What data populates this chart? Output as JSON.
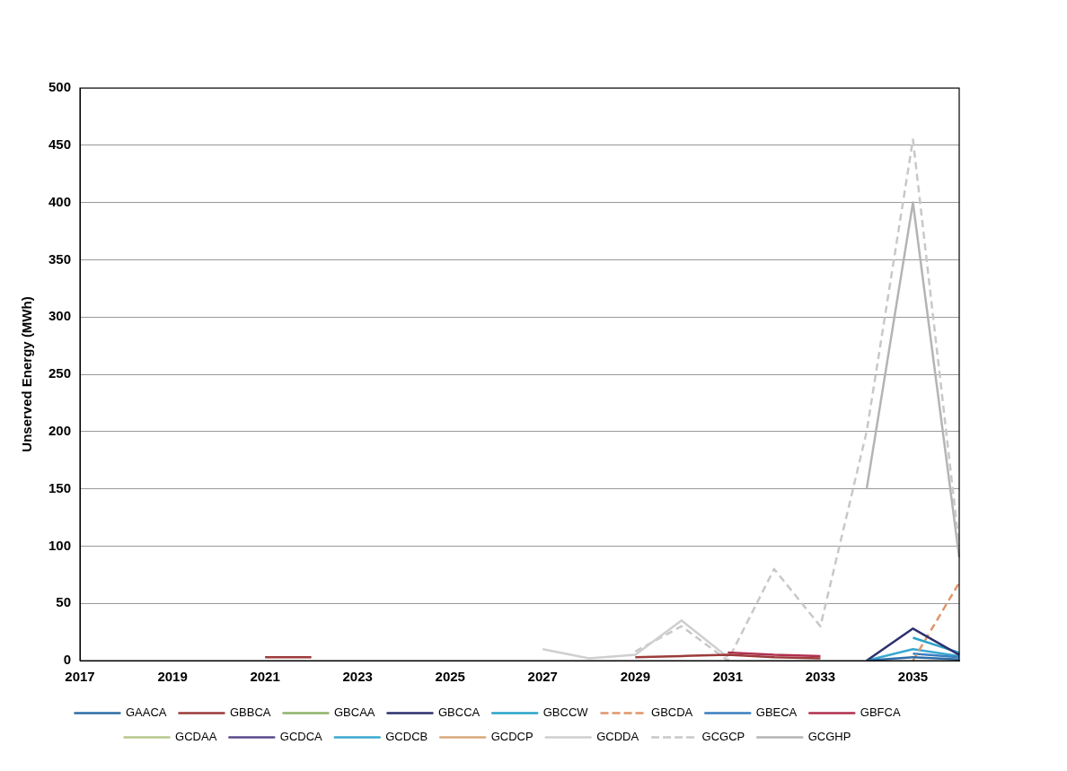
{
  "chart_data": {
    "type": "line",
    "ylabel": "Unserved Energy (MWh)",
    "categories": [
      "2017",
      null,
      "2019",
      null,
      "2021",
      null,
      "2023",
      null,
      "2025",
      null,
      "2027",
      null,
      "2029",
      null,
      "2031",
      null,
      "2033",
      null,
      "2035",
      null
    ],
    "ylim": [
      0,
      500
    ],
    "yticks": [
      0,
      50,
      100,
      150,
      200,
      250,
      300,
      350,
      400,
      450,
      500
    ],
    "grid": "y",
    "legend": "bottom",
    "marker": "none",
    "line_style": "solid",
    "series": [
      {
        "name": "GAACA",
        "color": "#2e6ea6",
        "values": [
          null,
          null,
          null,
          null,
          null,
          null,
          null,
          null,
          null,
          null,
          null,
          null,
          null,
          null,
          null,
          null,
          null,
          0,
          3,
          1
        ]
      },
      {
        "name": "GBBCA",
        "color": "#9c3b3b",
        "values": [
          null,
          null,
          null,
          null,
          3,
          3,
          null,
          null,
          null,
          null,
          null,
          null,
          3,
          4,
          5,
          3,
          2,
          null,
          null,
          null
        ]
      },
      {
        "name": "GBCAA",
        "color": "#8db36a",
        "values": [
          null,
          null,
          null,
          null,
          null,
          null,
          null,
          null,
          null,
          null,
          null,
          null,
          null,
          null,
          null,
          null,
          null,
          null,
          null,
          null
        ]
      },
      {
        "name": "GBCCA",
        "color": "#2d2f6e",
        "values": [
          null,
          null,
          null,
          null,
          null,
          null,
          null,
          null,
          null,
          null,
          null,
          null,
          null,
          null,
          null,
          null,
          null,
          0,
          28,
          5
        ]
      },
      {
        "name": "GBCCW",
        "color": "#2aa3c9",
        "values": [
          null,
          null,
          null,
          null,
          null,
          null,
          null,
          null,
          null,
          null,
          null,
          null,
          null,
          null,
          null,
          null,
          null,
          null,
          20,
          7
        ]
      },
      {
        "name": "GBCDA",
        "color": "#e0956a",
        "values": [
          null,
          null,
          null,
          null,
          null,
          null,
          null,
          null,
          null,
          null,
          null,
          null,
          null,
          null,
          null,
          null,
          null,
          null,
          0,
          68
        ],
        "line_style": "dashed"
      },
      {
        "name": "GBECA",
        "color": "#3a7fc0",
        "values": [
          null,
          null,
          null,
          null,
          null,
          null,
          null,
          null,
          null,
          null,
          null,
          null,
          null,
          null,
          null,
          null,
          null,
          null,
          6,
          3
        ]
      },
      {
        "name": "GBFCA",
        "color": "#b03050",
        "values": [
          null,
          null,
          null,
          null,
          null,
          null,
          null,
          null,
          null,
          null,
          null,
          null,
          null,
          null,
          7,
          5,
          4,
          null,
          null,
          null
        ]
      },
      {
        "name": "GCDAA",
        "color": "#b5c98a",
        "values": [
          null,
          null,
          null,
          null,
          null,
          null,
          null,
          null,
          null,
          null,
          null,
          null,
          null,
          null,
          null,
          null,
          null,
          null,
          null,
          null
        ]
      },
      {
        "name": "GCDCA",
        "color": "#5b4a8a",
        "values": [
          null,
          null,
          null,
          null,
          null,
          null,
          null,
          null,
          null,
          null,
          null,
          null,
          null,
          null,
          null,
          null,
          null,
          null,
          null,
          null
        ]
      },
      {
        "name": "GCDCB",
        "color": "#3aa8d0",
        "values": [
          null,
          null,
          null,
          null,
          null,
          null,
          null,
          null,
          null,
          null,
          null,
          null,
          null,
          null,
          null,
          null,
          null,
          0,
          10,
          4
        ]
      },
      {
        "name": "GCDCP",
        "color": "#d8a87a",
        "values": [
          null,
          null,
          null,
          null,
          null,
          null,
          null,
          null,
          null,
          null,
          null,
          null,
          null,
          null,
          null,
          null,
          null,
          null,
          null,
          null
        ]
      },
      {
        "name": "GCDDA",
        "color": "#cfcfcf",
        "values": [
          null,
          null,
          null,
          null,
          null,
          null,
          null,
          null,
          null,
          null,
          10,
          2,
          5,
          35,
          3,
          null,
          null,
          null,
          null,
          null
        ]
      },
      {
        "name": "GCGCP",
        "color": "#c8c8c8",
        "values": [
          null,
          null,
          null,
          null,
          null,
          null,
          null,
          null,
          null,
          null,
          null,
          null,
          8,
          30,
          0,
          80,
          30,
          200,
          455,
          100
        ],
        "line_style": "dashed"
      },
      {
        "name": "GCGHP",
        "color": "#b4b4b4",
        "values": [
          null,
          null,
          null,
          null,
          null,
          null,
          null,
          null,
          null,
          null,
          null,
          null,
          null,
          null,
          null,
          null,
          null,
          150,
          400,
          90
        ]
      }
    ]
  }
}
